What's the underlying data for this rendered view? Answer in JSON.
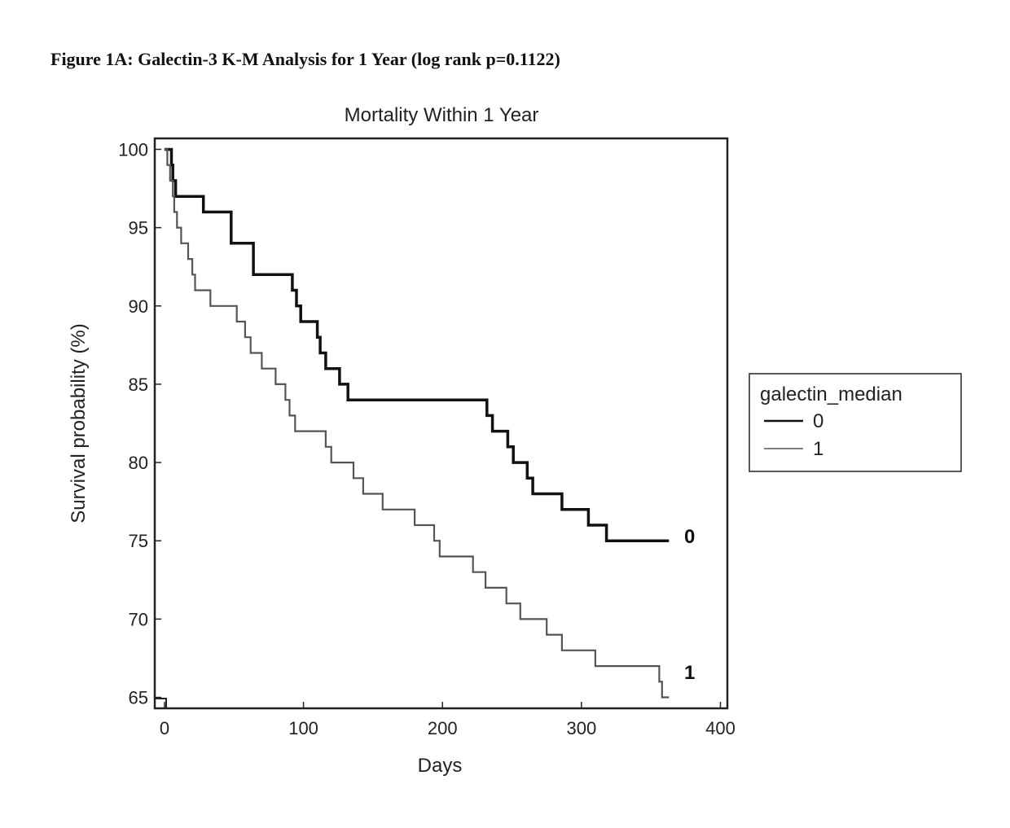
{
  "figure_title": "Figure 1A: Galectin-3 K-M Analysis for 1 Year (log rank p=0.1122)",
  "chart_data": {
    "type": "line",
    "subtype": "kaplan-meier step",
    "title": "Mortality Within 1 Year",
    "xlabel": "Days",
    "ylabel": "Survival probability (%)",
    "xlim": [
      -7,
      405
    ],
    "ylim": [
      64.3,
      100.7
    ],
    "xticks": [
      0,
      100,
      200,
      300,
      400
    ],
    "yticks": [
      65,
      70,
      75,
      80,
      85,
      90,
      95,
      100
    ],
    "grid": false,
    "legend": {
      "title": "galectin_median",
      "position": "right",
      "entries": [
        "0",
        "1"
      ]
    },
    "series": [
      {
        "name": "0",
        "end_label": "0",
        "color": "#111111",
        "points": [
          [
            0,
            100
          ],
          [
            5,
            100
          ],
          [
            5,
            99
          ],
          [
            6,
            99
          ],
          [
            6,
            98
          ],
          [
            8,
            98
          ],
          [
            8,
            97
          ],
          [
            28,
            97
          ],
          [
            28,
            96
          ],
          [
            48,
            96
          ],
          [
            48,
            94
          ],
          [
            64,
            94
          ],
          [
            64,
            92
          ],
          [
            92,
            92
          ],
          [
            92,
            91
          ],
          [
            95,
            91
          ],
          [
            95,
            90
          ],
          [
            98,
            90
          ],
          [
            98,
            89
          ],
          [
            110,
            89
          ],
          [
            110,
            88
          ],
          [
            112,
            88
          ],
          [
            112,
            87
          ],
          [
            116,
            87
          ],
          [
            116,
            86
          ],
          [
            126,
            86
          ],
          [
            126,
            85
          ],
          [
            132,
            85
          ],
          [
            132,
            84
          ],
          [
            232,
            84
          ],
          [
            232,
            83
          ],
          [
            236,
            83
          ],
          [
            236,
            82
          ],
          [
            247,
            82
          ],
          [
            247,
            81
          ],
          [
            251,
            81
          ],
          [
            251,
            80
          ],
          [
            261,
            80
          ],
          [
            261,
            79
          ],
          [
            265,
            79
          ],
          [
            265,
            78
          ],
          [
            286,
            78
          ],
          [
            286,
            77
          ],
          [
            305,
            77
          ],
          [
            305,
            76
          ],
          [
            318,
            76
          ],
          [
            318,
            75
          ],
          [
            363,
            75
          ]
        ]
      },
      {
        "name": "1",
        "end_label": "1",
        "color": "#555555",
        "points": [
          [
            0,
            100
          ],
          [
            2,
            100
          ],
          [
            2,
            99
          ],
          [
            4,
            99
          ],
          [
            4,
            98
          ],
          [
            6,
            98
          ],
          [
            6,
            97
          ],
          [
            7,
            97
          ],
          [
            7,
            96
          ],
          [
            9,
            96
          ],
          [
            9,
            95
          ],
          [
            12,
            95
          ],
          [
            12,
            94
          ],
          [
            17,
            94
          ],
          [
            17,
            93
          ],
          [
            20,
            93
          ],
          [
            20,
            92
          ],
          [
            22,
            92
          ],
          [
            22,
            91
          ],
          [
            33,
            91
          ],
          [
            33,
            90
          ],
          [
            52,
            90
          ],
          [
            52,
            89
          ],
          [
            58,
            89
          ],
          [
            58,
            88
          ],
          [
            62,
            88
          ],
          [
            62,
            87
          ],
          [
            70,
            87
          ],
          [
            70,
            86
          ],
          [
            80,
            86
          ],
          [
            80,
            85
          ],
          [
            87,
            85
          ],
          [
            87,
            84
          ],
          [
            90,
            84
          ],
          [
            90,
            83
          ],
          [
            94,
            83
          ],
          [
            94,
            82
          ],
          [
            116,
            82
          ],
          [
            116,
            81
          ],
          [
            120,
            81
          ],
          [
            120,
            80
          ],
          [
            136,
            80
          ],
          [
            136,
            79
          ],
          [
            143,
            79
          ],
          [
            143,
            78
          ],
          [
            157,
            78
          ],
          [
            157,
            77
          ],
          [
            180,
            77
          ],
          [
            180,
            76
          ],
          [
            194,
            76
          ],
          [
            194,
            75
          ],
          [
            198,
            75
          ],
          [
            198,
            74
          ],
          [
            222,
            74
          ],
          [
            222,
            73
          ],
          [
            231,
            73
          ],
          [
            231,
            72
          ],
          [
            246,
            72
          ],
          [
            246,
            71
          ],
          [
            256,
            71
          ],
          [
            256,
            70
          ],
          [
            275,
            70
          ],
          [
            275,
            69
          ],
          [
            286,
            69
          ],
          [
            286,
            68
          ],
          [
            310,
            68
          ],
          [
            310,
            67
          ],
          [
            356,
            67
          ],
          [
            356,
            66
          ],
          [
            358,
            66
          ],
          [
            358,
            65
          ],
          [
            363,
            65
          ]
        ]
      }
    ]
  }
}
